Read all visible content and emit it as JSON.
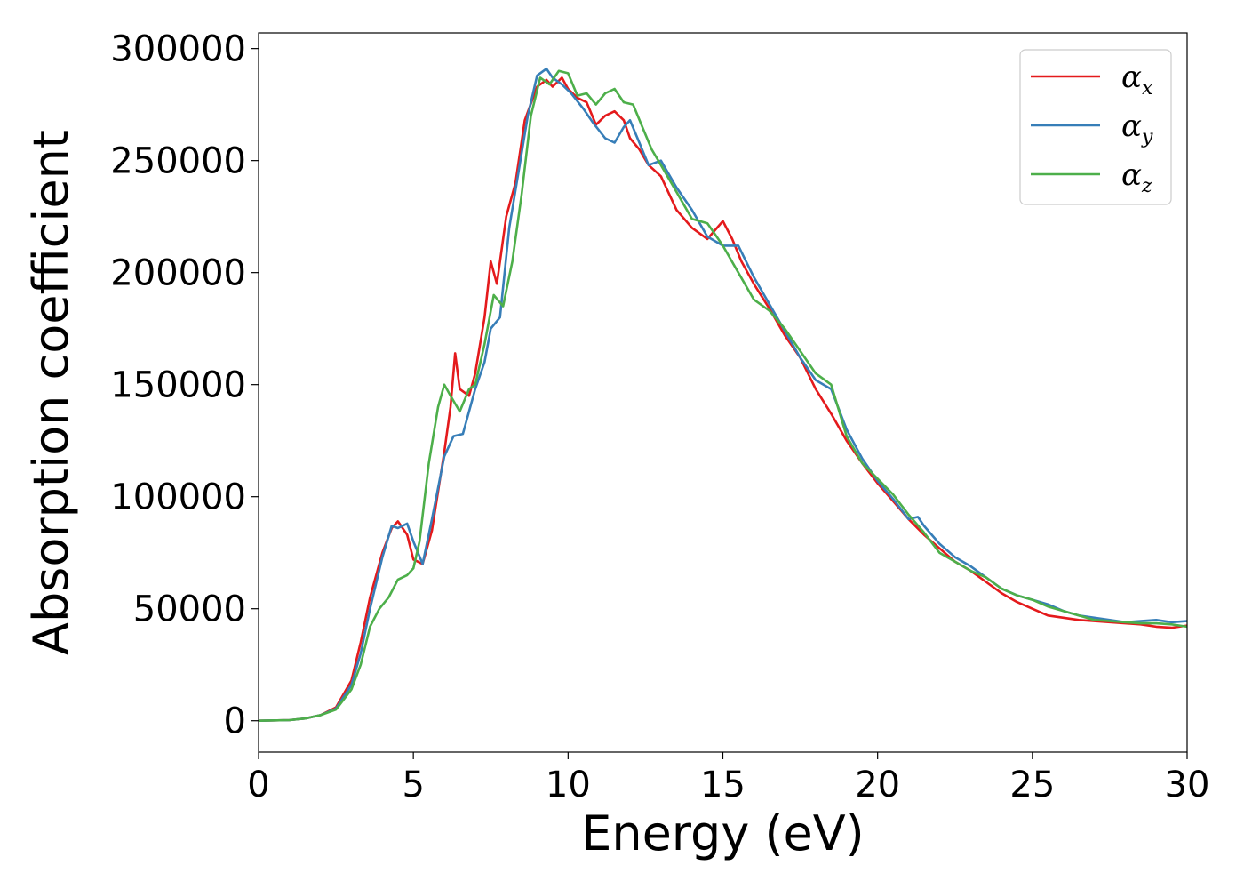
{
  "chart_data": {
    "type": "line",
    "xlabel": "Energy (eV)",
    "ylabel": "Absorption coefficient",
    "xlim": [
      0,
      30
    ],
    "ylim": [
      -14000,
      307000
    ],
    "xticks": [
      0,
      5,
      10,
      15,
      20,
      25,
      30
    ],
    "yticks": [
      0,
      50000,
      100000,
      150000,
      200000,
      250000,
      300000
    ],
    "grid": false,
    "legend_position": "top-right",
    "series": [
      {
        "name": "αx",
        "symbol": "α",
        "subscript": "x",
        "color": "#e41a1c",
        "x": [
          0,
          1,
          1.5,
          2,
          2.5,
          3,
          3.3,
          3.6,
          4,
          4.3,
          4.5,
          4.8,
          5.0,
          5.3,
          5.6,
          6.0,
          6.2,
          6.35,
          6.5,
          6.8,
          7.0,
          7.3,
          7.5,
          7.7,
          8.0,
          8.3,
          8.6,
          9.0,
          9.3,
          9.5,
          9.8,
          10.0,
          10.3,
          10.6,
          10.9,
          11.2,
          11.5,
          11.8,
          12.0,
          12.3,
          12.6,
          13.0,
          13.5,
          14.0,
          14.5,
          15.0,
          15.3,
          15.6,
          16.0,
          16.5,
          17.0,
          17.5,
          18.0,
          18.5,
          19.0,
          19.5,
          20.0,
          20.5,
          21.0,
          21.5,
          22.0,
          22.5,
          23.0,
          23.5,
          24.0,
          24.5,
          25.0,
          25.5,
          26.0,
          26.5,
          27.0,
          27.5,
          28.0,
          28.5,
          29.0,
          29.5,
          30.0
        ],
        "y": [
          0,
          300,
          1000,
          2500,
          6000,
          18000,
          35000,
          55000,
          75000,
          86000,
          89000,
          83000,
          72000,
          70000,
          85000,
          120000,
          140000,
          164000,
          148000,
          145000,
          155000,
          180000,
          205000,
          195000,
          225000,
          240000,
          268000,
          283000,
          286000,
          283000,
          287000,
          282000,
          278000,
          276000,
          266000,
          270000,
          272000,
          268000,
          260000,
          255000,
          248000,
          243000,
          228000,
          220000,
          215000,
          223000,
          215000,
          205000,
          195000,
          184000,
          172000,
          162000,
          148000,
          137000,
          125000,
          115000,
          106000,
          98000,
          90000,
          83000,
          77000,
          71000,
          67000,
          62000,
          57000,
          53000,
          50000,
          47000,
          46000,
          45000,
          44500,
          44000,
          43500,
          43000,
          42000,
          41500,
          42500
        ]
      },
      {
        "name": "αy",
        "symbol": "α",
        "subscript": "y",
        "color": "#377eb8",
        "x": [
          0,
          1,
          1.5,
          2,
          2.5,
          3,
          3.3,
          3.6,
          4,
          4.3,
          4.5,
          4.8,
          5.0,
          5.3,
          5.6,
          6.0,
          6.3,
          6.6,
          7.0,
          7.3,
          7.5,
          7.8,
          8.1,
          8.4,
          8.7,
          9.0,
          9.3,
          9.5,
          9.8,
          10.1,
          10.5,
          10.8,
          11.2,
          11.5,
          11.8,
          12.0,
          12.3,
          12.6,
          13.0,
          13.5,
          14.0,
          14.5,
          15.0,
          15.5,
          16.0,
          16.5,
          17.0,
          17.5,
          18.0,
          18.5,
          19.0,
          19.5,
          20.0,
          20.5,
          21.0,
          21.3,
          21.5,
          22.0,
          22.5,
          23.0,
          23.5,
          24.0,
          24.5,
          25.0,
          25.5,
          26.0,
          26.5,
          27.0,
          27.5,
          28.0,
          28.5,
          29.0,
          29.5,
          30.0
        ],
        "y": [
          0,
          300,
          1000,
          2500,
          5500,
          16000,
          30000,
          50000,
          73000,
          87000,
          86000,
          88000,
          80000,
          70000,
          90000,
          118000,
          127000,
          128000,
          148000,
          160000,
          175000,
          180000,
          220000,
          245000,
          270000,
          288000,
          291000,
          287000,
          284000,
          280000,
          273000,
          267000,
          260000,
          258000,
          265000,
          268000,
          258000,
          248000,
          250000,
          238000,
          228000,
          216000,
          212000,
          212000,
          198000,
          186000,
          174000,
          162000,
          152000,
          148000,
          130000,
          117000,
          107000,
          99000,
          90000,
          91000,
          87000,
          79000,
          73000,
          69000,
          64000,
          59000,
          56000,
          54000,
          52000,
          49000,
          47000,
          46000,
          45000,
          44000,
          44500,
          45000,
          44000,
          44500
        ]
      },
      {
        "name": "αz",
        "symbol": "α",
        "subscript": "z",
        "color": "#4daf4a",
        "x": [
          0,
          1,
          1.5,
          2,
          2.5,
          3,
          3.3,
          3.6,
          3.9,
          4.2,
          4.5,
          4.8,
          5.0,
          5.2,
          5.5,
          5.8,
          6.0,
          6.2,
          6.5,
          6.8,
          7.0,
          7.3,
          7.6,
          7.9,
          8.2,
          8.5,
          8.8,
          9.1,
          9.4,
          9.7,
          10.0,
          10.3,
          10.6,
          10.9,
          11.2,
          11.5,
          11.8,
          12.1,
          12.4,
          12.7,
          13.0,
          13.5,
          14.0,
          14.5,
          15.0,
          15.5,
          16.0,
          16.5,
          17.0,
          17.5,
          18.0,
          18.5,
          19.0,
          19.5,
          20.0,
          20.5,
          21.0,
          21.5,
          22.0,
          22.5,
          23.0,
          23.5,
          24.0,
          24.5,
          25.0,
          25.5,
          26.0,
          26.5,
          27.0,
          27.5,
          28.0,
          28.5,
          29.0,
          29.5,
          30.0
        ],
        "y": [
          0,
          300,
          1000,
          2500,
          5000,
          14000,
          25000,
          42000,
          50000,
          55000,
          63000,
          65000,
          68000,
          80000,
          115000,
          140000,
          150000,
          145000,
          138000,
          148000,
          150000,
          168000,
          190000,
          185000,
          205000,
          235000,
          270000,
          287000,
          284000,
          290000,
          289000,
          279000,
          280000,
          275000,
          280000,
          282000,
          276000,
          275000,
          265000,
          255000,
          248000,
          236000,
          224000,
          222000,
          212000,
          200000,
          188000,
          183000,
          175000,
          165000,
          155000,
          150000,
          127000,
          115000,
          108000,
          101000,
          92000,
          84000,
          75000,
          71000,
          67000,
          64000,
          59000,
          56000,
          54000,
          51000,
          49000,
          47000,
          45000,
          44500,
          44000,
          43500,
          43500,
          43000,
          42000
        ]
      }
    ]
  }
}
